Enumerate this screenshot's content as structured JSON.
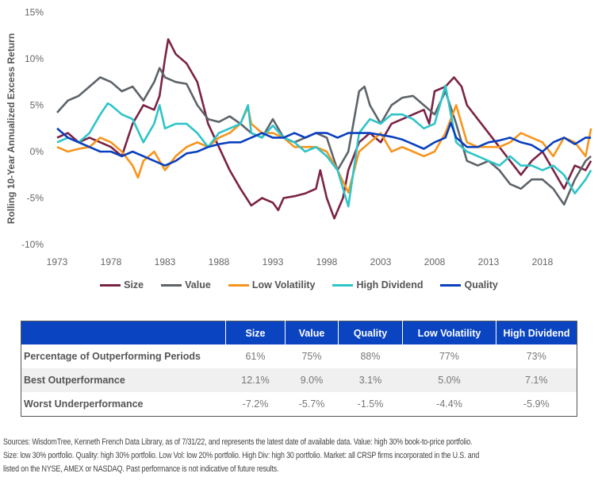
{
  "chart_data": {
    "type": "line",
    "ylabel": "Rolling 10-Year Annualized Excess Return",
    "ylim": [
      -10,
      15
    ],
    "yticks": [
      "15%",
      "10%",
      "5%",
      "0%",
      "-5%",
      "-10%"
    ],
    "ytick_values": [
      15,
      10,
      5,
      0,
      -5,
      -10
    ],
    "xlim": [
      1973,
      2023
    ],
    "xticks": [
      "1973",
      "1978",
      "1983",
      "1988",
      "1993",
      "1998",
      "2003",
      "2008",
      "2013",
      "2018"
    ],
    "grid": false,
    "legend": "bottom",
    "series": [
      {
        "name": "Size",
        "color": "#7b2346",
        "points": [
          [
            1973,
            1.5
          ],
          [
            1974,
            2
          ],
          [
            1975,
            1
          ],
          [
            1976,
            1.5
          ],
          [
            1977,
            1
          ],
          [
            1978,
            0.5
          ],
          [
            1979,
            -0.5
          ],
          [
            1980,
            3
          ],
          [
            1981,
            5
          ],
          [
            1982,
            4.5
          ],
          [
            1982.5,
            6
          ],
          [
            1983,
            10
          ],
          [
            1983.3,
            12.1
          ],
          [
            1984,
            10.5
          ],
          [
            1985,
            9.5
          ],
          [
            1986,
            7.5
          ],
          [
            1987,
            3
          ],
          [
            1988,
            0.5
          ],
          [
            1989,
            -2
          ],
          [
            1990,
            -4
          ],
          [
            1991,
            -5.8
          ],
          [
            1992,
            -5
          ],
          [
            1993,
            -5.5
          ],
          [
            1993.5,
            -6.3
          ],
          [
            1994,
            -5
          ],
          [
            1995,
            -4.8
          ],
          [
            1996,
            -4.5
          ],
          [
            1997,
            -4
          ],
          [
            1997.4,
            -2
          ],
          [
            1998,
            -5
          ],
          [
            1998.7,
            -7.2
          ],
          [
            1999.5,
            -5
          ],
          [
            2000,
            -2
          ],
          [
            2001,
            1
          ],
          [
            2002,
            2
          ],
          [
            2003,
            1
          ],
          [
            2004,
            3
          ],
          [
            2005,
            3.5
          ],
          [
            2006,
            4
          ],
          [
            2007,
            4.5
          ],
          [
            2007.5,
            3
          ],
          [
            2008,
            6.5
          ],
          [
            2009,
            7
          ],
          [
            2009.8,
            8
          ],
          [
            2010.5,
            7
          ],
          [
            2011,
            5
          ],
          [
            2012,
            3.5
          ],
          [
            2013,
            2
          ],
          [
            2014,
            0.5
          ],
          [
            2015,
            -1
          ],
          [
            2016,
            -2.5
          ],
          [
            2017,
            -1
          ],
          [
            2018,
            0
          ],
          [
            2019,
            -2
          ],
          [
            2020,
            -4
          ],
          [
            2021,
            -1.5
          ],
          [
            2022,
            -2
          ],
          [
            2022.5,
            -1
          ]
        ]
      },
      {
        "name": "Value",
        "color": "#5d6369",
        "points": [
          [
            1973,
            4.2
          ],
          [
            1974,
            5.5
          ],
          [
            1975,
            6
          ],
          [
            1976,
            7
          ],
          [
            1977,
            8
          ],
          [
            1978,
            7.5
          ],
          [
            1979,
            6.5
          ],
          [
            1980,
            7
          ],
          [
            1981,
            5.5
          ],
          [
            1982,
            7.5
          ],
          [
            1982.5,
            9
          ],
          [
            1983,
            8
          ],
          [
            1984,
            7.5
          ],
          [
            1985,
            7.3
          ],
          [
            1986,
            5
          ],
          [
            1987,
            3.5
          ],
          [
            1988,
            3.2
          ],
          [
            1989,
            3.8
          ],
          [
            1990,
            3
          ],
          [
            1991,
            2
          ],
          [
            1992,
            1.5
          ],
          [
            1993,
            3.5
          ],
          [
            1994,
            1.5
          ],
          [
            1995,
            1
          ],
          [
            1996,
            1.5
          ],
          [
            1997,
            2
          ],
          [
            1998,
            1.5
          ],
          [
            1999,
            -2
          ],
          [
            2000,
            0
          ],
          [
            2001,
            6.5
          ],
          [
            2001.5,
            7
          ],
          [
            2002,
            5
          ],
          [
            2003,
            3
          ],
          [
            2004,
            5
          ],
          [
            2005,
            5.8
          ],
          [
            2006,
            6
          ],
          [
            2007,
            5
          ],
          [
            2008,
            4
          ],
          [
            2009,
            6.5
          ],
          [
            2010,
            3
          ],
          [
            2011,
            -1
          ],
          [
            2012,
            -1.5
          ],
          [
            2013,
            -1
          ],
          [
            2014,
            -2
          ],
          [
            2015,
            -3.5
          ],
          [
            2016,
            -4
          ],
          [
            2017,
            -3
          ],
          [
            2018,
            -3
          ],
          [
            2019,
            -4
          ],
          [
            2020,
            -5.7
          ],
          [
            2021,
            -3
          ],
          [
            2022,
            -1
          ],
          [
            2022.5,
            -0.5
          ]
        ]
      },
      {
        "name": "Low Volatility",
        "color": "#f7941d",
        "points": [
          [
            1973,
            0.5
          ],
          [
            1974,
            0
          ],
          [
            1975,
            0.3
          ],
          [
            1976,
            0.5
          ],
          [
            1977,
            1.5
          ],
          [
            1978,
            1
          ],
          [
            1979,
            0
          ],
          [
            1980,
            -1.5
          ],
          [
            1980.5,
            -2.8
          ],
          [
            1981,
            -1
          ],
          [
            1982,
            0
          ],
          [
            1983,
            -2
          ],
          [
            1984,
            -0.5
          ],
          [
            1985,
            0.5
          ],
          [
            1986,
            1
          ],
          [
            1987,
            0.5
          ],
          [
            1988,
            1.5
          ],
          [
            1989,
            2
          ],
          [
            1990,
            3
          ],
          [
            1990.7,
            4.8
          ],
          [
            1991,
            3
          ],
          [
            1992,
            2
          ],
          [
            1993,
            2
          ],
          [
            1994,
            1.5
          ],
          [
            1995,
            0.5
          ],
          [
            1996,
            0.5
          ],
          [
            1997,
            0.5
          ],
          [
            1998,
            0
          ],
          [
            1999,
            -2
          ],
          [
            2000,
            -4.4
          ],
          [
            2001,
            0
          ],
          [
            2002,
            1
          ],
          [
            2003,
            2
          ],
          [
            2004,
            0
          ],
          [
            2005,
            0.5
          ],
          [
            2006,
            0
          ],
          [
            2007,
            -0.5
          ],
          [
            2008,
            0
          ],
          [
            2009,
            2
          ],
          [
            2010,
            5
          ],
          [
            2011,
            1
          ],
          [
            2012,
            0.5
          ],
          [
            2013,
            0.5
          ],
          [
            2014,
            0.5
          ],
          [
            2015,
            1
          ],
          [
            2016,
            2
          ],
          [
            2017,
            1.5
          ],
          [
            2018,
            1
          ],
          [
            2019,
            -0.5
          ],
          [
            2020,
            1.5
          ],
          [
            2021,
            1
          ],
          [
            2022,
            -0.5
          ],
          [
            2022.5,
            2.5
          ]
        ]
      },
      {
        "name": "High Dividend",
        "color": "#2ec4c9",
        "points": [
          [
            1973,
            1
          ],
          [
            1974,
            1.5
          ],
          [
            1975,
            1
          ],
          [
            1976,
            2
          ],
          [
            1977,
            4
          ],
          [
            1977.7,
            5.2
          ],
          [
            1978,
            5
          ],
          [
            1979,
            4
          ],
          [
            1980,
            3.5
          ],
          [
            1981,
            1
          ],
          [
            1982,
            3
          ],
          [
            1982.5,
            5
          ],
          [
            1983,
            2.5
          ],
          [
            1984,
            3
          ],
          [
            1985,
            3
          ],
          [
            1986,
            2
          ],
          [
            1987,
            0.5
          ],
          [
            1988,
            2
          ],
          [
            1989,
            2.5
          ],
          [
            1990,
            3
          ],
          [
            1990.7,
            5
          ],
          [
            1991,
            2
          ],
          [
            1992,
            1.5
          ],
          [
            1993,
            2.8
          ],
          [
            1994,
            1.5
          ],
          [
            1995,
            1
          ],
          [
            1996,
            0
          ],
          [
            1997,
            0.5
          ],
          [
            1998,
            -0.5
          ],
          [
            1999,
            -2
          ],
          [
            2000,
            -5.9
          ],
          [
            2001,
            2
          ],
          [
            2002,
            3.5
          ],
          [
            2003,
            3
          ],
          [
            2004,
            4
          ],
          [
            2005,
            4
          ],
          [
            2006,
            3.5
          ],
          [
            2007,
            2.5
          ],
          [
            2008,
            3
          ],
          [
            2009,
            7.1
          ],
          [
            2010,
            1
          ],
          [
            2011,
            0
          ],
          [
            2012,
            -0.5
          ],
          [
            2013,
            -1
          ],
          [
            2014,
            -1.5
          ],
          [
            2015,
            -0.5
          ],
          [
            2016,
            -1.5
          ],
          [
            2017,
            -1.5
          ],
          [
            2018,
            -2
          ],
          [
            2019,
            -1.5
          ],
          [
            2020,
            -2.5
          ],
          [
            2021,
            -4.5
          ],
          [
            2022,
            -3
          ],
          [
            2022.5,
            -2
          ]
        ]
      },
      {
        "name": "Quality",
        "color": "#0a3fbf",
        "points": [
          [
            1973,
            2.5
          ],
          [
            1974,
            1.5
          ],
          [
            1975,
            1
          ],
          [
            1976,
            0.5
          ],
          [
            1977,
            0
          ],
          [
            1978,
            0
          ],
          [
            1979,
            -0.5
          ],
          [
            1980,
            0
          ],
          [
            1981,
            -0.5
          ],
          [
            1982,
            -1
          ],
          [
            1983,
            -1.5
          ],
          [
            1984,
            -1
          ],
          [
            1985,
            -0.2
          ],
          [
            1986,
            0
          ],
          [
            1987,
            0.5
          ],
          [
            1988,
            0.8
          ],
          [
            1989,
            1
          ],
          [
            1990,
            1
          ],
          [
            1991,
            1.5
          ],
          [
            1992,
            2
          ],
          [
            1993,
            1.5
          ],
          [
            1994,
            1.5
          ],
          [
            1995,
            2
          ],
          [
            1996,
            1.5
          ],
          [
            1997,
            2
          ],
          [
            1998,
            2
          ],
          [
            1999,
            1.5
          ],
          [
            2000,
            2
          ],
          [
            2001,
            2
          ],
          [
            2002,
            2
          ],
          [
            2003,
            1.8
          ],
          [
            2004,
            1.6
          ],
          [
            2005,
            1.3
          ],
          [
            2006,
            0.8
          ],
          [
            2007,
            0.3
          ],
          [
            2008,
            1
          ],
          [
            2009,
            1.5
          ],
          [
            2009.5,
            3.1
          ],
          [
            2010,
            1.5
          ],
          [
            2011,
            0.5
          ],
          [
            2012,
            0.5
          ],
          [
            2013,
            1
          ],
          [
            2014,
            1.2
          ],
          [
            2015,
            1.5
          ],
          [
            2016,
            1
          ],
          [
            2017,
            0.7
          ],
          [
            2018,
            0
          ],
          [
            2019,
            1
          ],
          [
            2020,
            1.5
          ],
          [
            2021,
            0.8
          ],
          [
            2022,
            1.5
          ],
          [
            2022.5,
            1.5
          ]
        ]
      }
    ]
  },
  "legend_order": [
    "Size",
    "Value",
    "Low Volatility",
    "High Dividend",
    "Quality"
  ],
  "table": {
    "headers": [
      "",
      "Size",
      "Value",
      "Quality",
      "Low Volatility",
      "High Dividend"
    ],
    "header_color": "#0a44c0",
    "rows": [
      {
        "label": "Percentage of Outperforming Periods",
        "values": [
          "61%",
          "75%",
          "88%",
          "77%",
          "73%"
        ]
      },
      {
        "label": "Best Outperformance",
        "values": [
          "12.1%",
          "9.0%",
          "3.1%",
          "5.0%",
          "7.1%"
        ]
      },
      {
        "label": "Worst Underperformance",
        "values": [
          "-7.2%",
          "-5.7%",
          "-1.5%",
          "-4.4%",
          "-5.9%"
        ]
      }
    ]
  },
  "footnote": [
    "Sources: WisdomTree, Kenneth French Data Library, as of 7/31/22, and represents the latest date of available data. Value: high 30% book-to-price portfolio.",
    "Size: low 30% portfolio. Quality: high 30% portfolio. Low Vol: low 20% portfolio. High Div: high 30 portfolio. Market: all CRSP firms incorporated in the U.S. and",
    "listed on the NYSE, AMEX or NASDAQ. Past performance is not indicative of future results."
  ]
}
